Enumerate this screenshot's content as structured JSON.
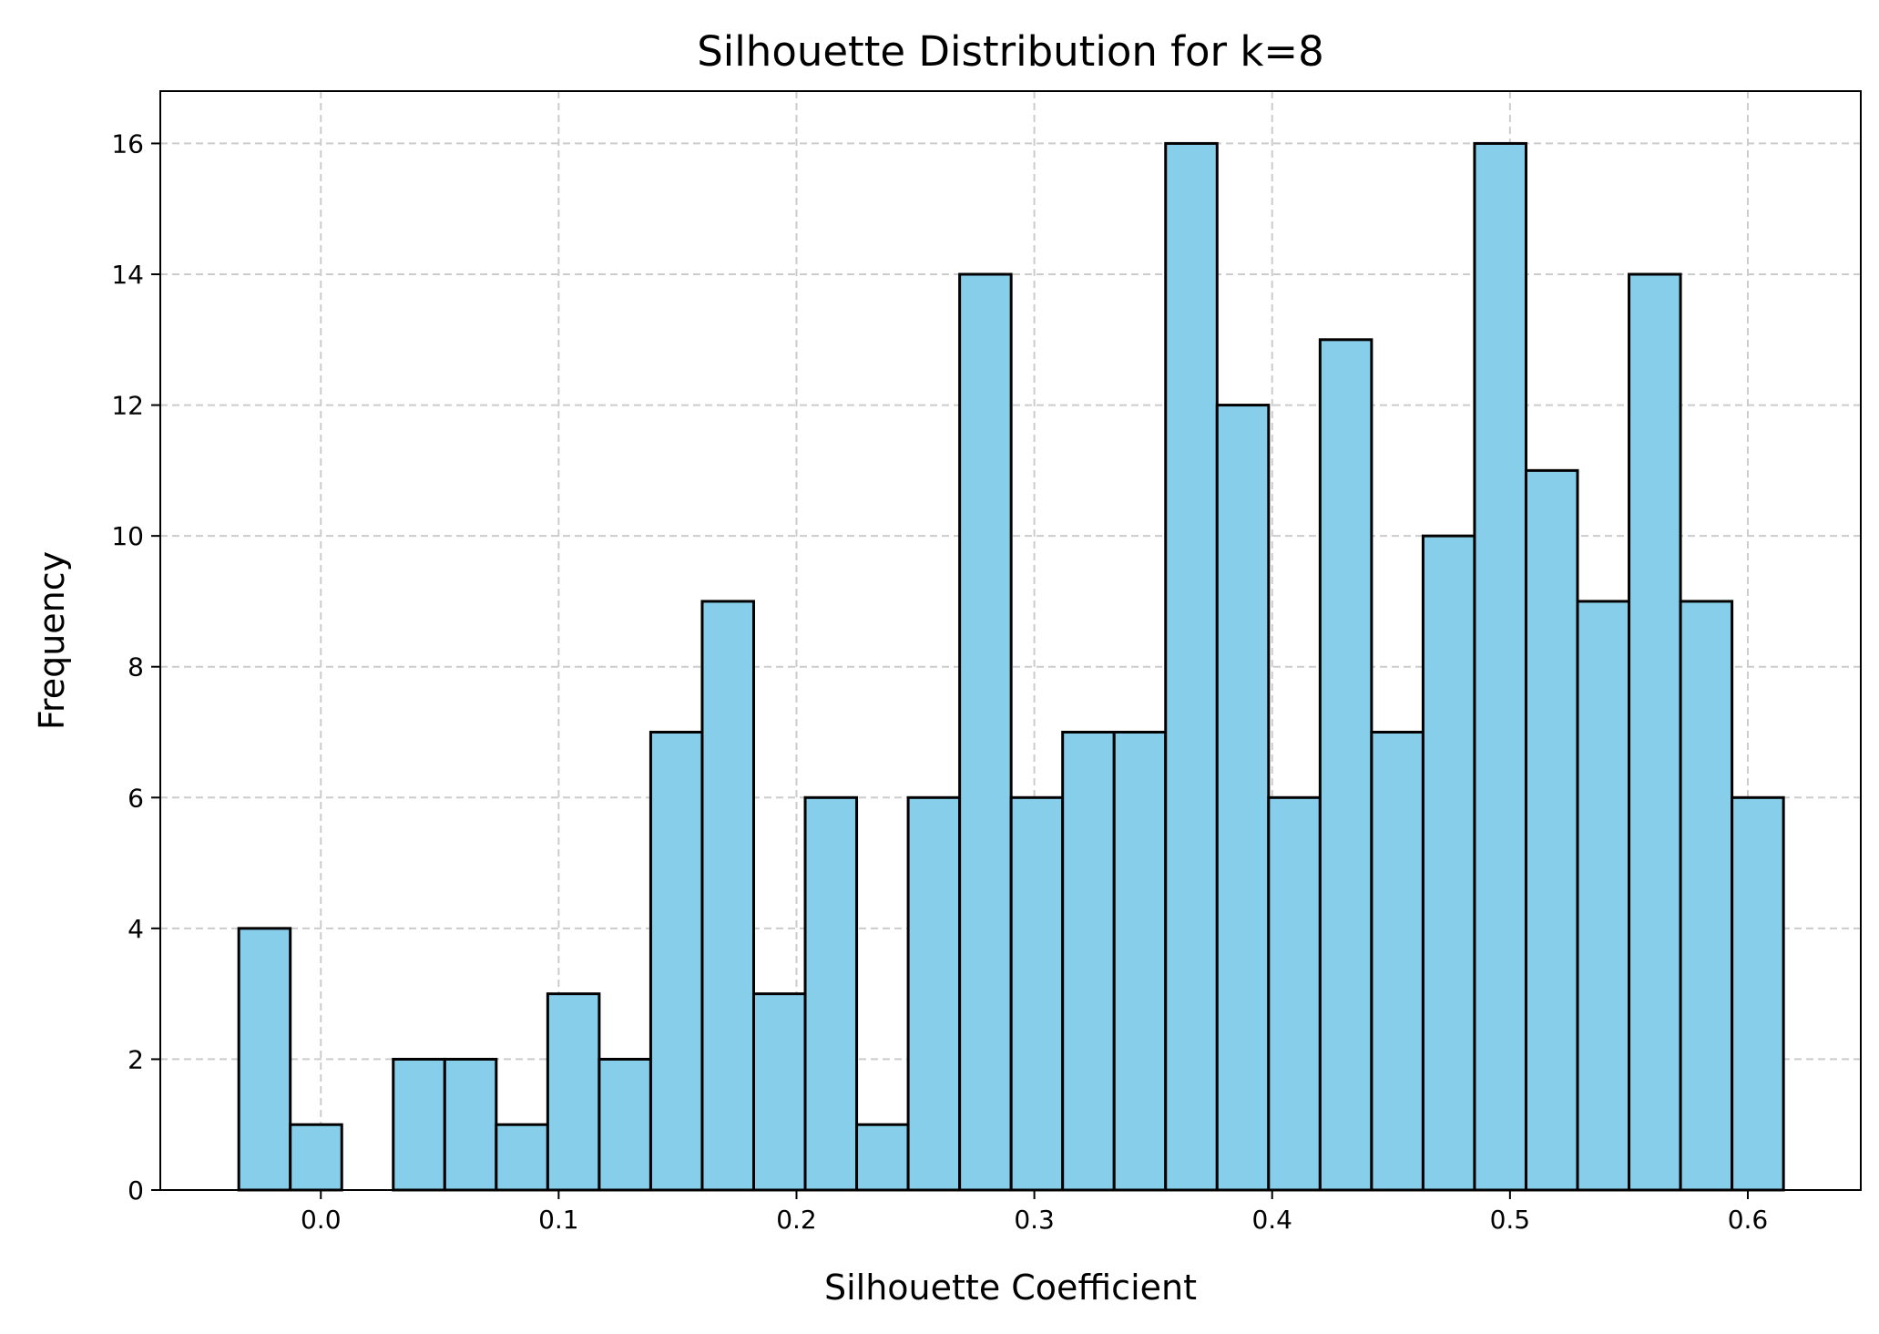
{
  "chart_data": {
    "type": "bar",
    "subtype": "histogram",
    "title": "Silhouette Distribution for k=8",
    "xlabel": "Silhouette Coefficient",
    "ylabel": "Frequency",
    "xlim": [
      -0.0675,
      0.6475
    ],
    "ylim": [
      0,
      16.8
    ],
    "xticks": [
      0.0,
      0.1,
      0.2,
      0.3,
      0.4,
      0.5,
      0.6
    ],
    "xtick_labels": [
      "0.0",
      "0.1",
      "0.2",
      "0.3",
      "0.4",
      "0.5",
      "0.6"
    ],
    "yticks": [
      0,
      2,
      4,
      6,
      8,
      10,
      12,
      14,
      16
    ],
    "ytick_labels": [
      "0",
      "2",
      "4",
      "6",
      "8",
      "10",
      "12",
      "14",
      "16"
    ],
    "bin_start": -0.0345,
    "bin_width": 0.02165,
    "values": [
      4,
      1,
      0,
      2,
      2,
      1,
      3,
      2,
      7,
      9,
      3,
      6,
      1,
      6,
      14,
      6,
      7,
      7,
      16,
      12,
      6,
      13,
      7,
      10,
      16,
      11,
      9,
      14,
      9,
      6
    ],
    "grid": true,
    "colors": {
      "bar_fill": "#87CEEB",
      "bar_edge": "#000000",
      "grid": "#cccccc"
    }
  }
}
